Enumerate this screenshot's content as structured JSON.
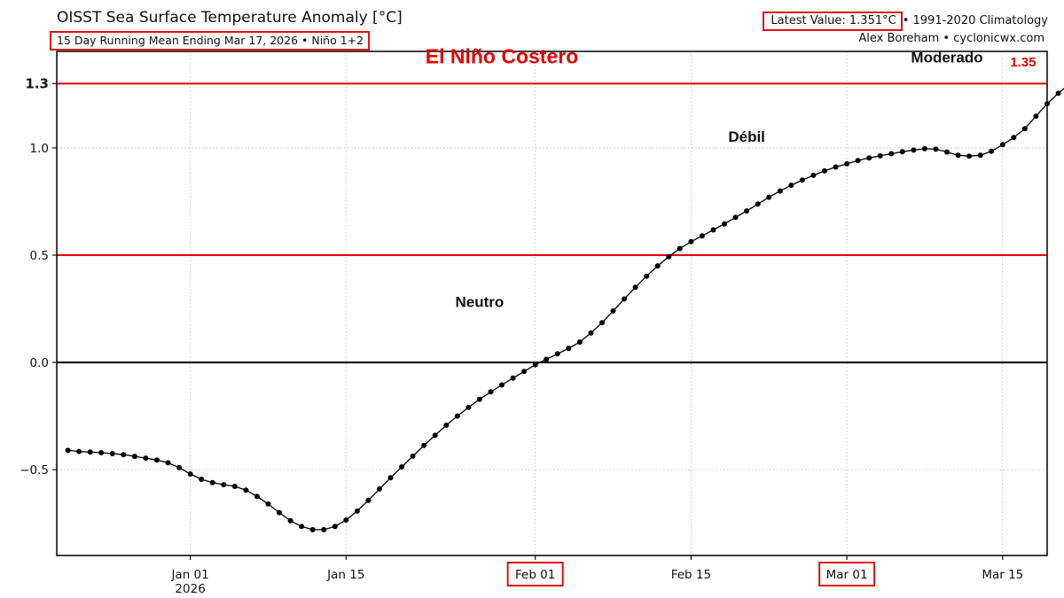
{
  "header": {
    "title": "OISST Sea Surface Temperature Anomaly [°C]",
    "subtitle": "15 Day Running Mean Ending Mar 17, 2026 • Niño 1+2",
    "latest_value": "Latest Value: 1.351°C",
    "climatology": "• 1991-2020 Climatology",
    "credit": "Alex Boreham • cyclonicwx.com"
  },
  "colors": {
    "threshold": "#e60000",
    "series": "#000000",
    "grid": "#bbbbbb",
    "highlight_box": "#e01010"
  },
  "chart_data": {
    "type": "line",
    "title": "OISST Sea Surface Temperature Anomaly [°C]",
    "xlabel": "",
    "ylabel": "",
    "x_start": "2025-12-21",
    "x_end": "2026-03-17",
    "xlim": [
      "2025-12-20",
      "2026-03-19"
    ],
    "ylim": [
      -0.9,
      1.45
    ],
    "grid": true,
    "yticks": [
      {
        "value": -0.5,
        "label": "−0.5",
        "bold": false
      },
      {
        "value": 0.0,
        "label": "0.0",
        "bold": false
      },
      {
        "value": 0.5,
        "label": "0.5",
        "bold": false
      },
      {
        "value": 1.0,
        "label": "1.0",
        "bold": false
      },
      {
        "value": 1.3,
        "label": "1.3",
        "bold": true
      }
    ],
    "xticks": [
      {
        "date": "2026-01-01",
        "label": "Jan 01",
        "label2": "2026",
        "boxed": false
      },
      {
        "date": "2026-01-15",
        "label": "Jan 15",
        "label2": "",
        "boxed": false
      },
      {
        "date": "2026-02-01",
        "label": "Feb 01",
        "label2": "",
        "boxed": true
      },
      {
        "date": "2026-02-15",
        "label": "Feb 15",
        "label2": "",
        "boxed": false
      },
      {
        "date": "2026-03-01",
        "label": "Mar 01",
        "label2": "",
        "boxed": true
      },
      {
        "date": "2026-03-15",
        "label": "Mar 15",
        "label2": "",
        "boxed": false
      }
    ],
    "hlines": [
      {
        "value": 0.0,
        "color": "#000000",
        "width": 2
      },
      {
        "value": 0.5,
        "color": "#e60000",
        "width": 2
      },
      {
        "value": 1.3,
        "color": "#e60000",
        "width": 2
      }
    ],
    "annotations": [
      {
        "text": "El Niño Costero",
        "date": "2026-01-29",
        "value": 1.385,
        "color": "#e60000",
        "size": 23
      },
      {
        "text": "Moderado",
        "date": "2026-03-10",
        "value": 1.39,
        "color": "#111111",
        "size": 17
      },
      {
        "text": "Débil",
        "date": "2026-02-20",
        "value": 1.02,
        "color": "#111111",
        "size": 17
      },
      {
        "text": "Neutro",
        "date": "2026-01-27",
        "value": 0.25,
        "color": "#111111",
        "size": 17
      }
    ],
    "latest_label": {
      "text": "1.35",
      "date": "2026-03-17",
      "value": 1.351,
      "color": "#e60000"
    },
    "series": [
      {
        "values": [
          -0.41,
          -0.415,
          -0.418,
          -0.421,
          -0.425,
          -0.43,
          -0.438,
          -0.446,
          -0.455,
          -0.468,
          -0.49,
          -0.52,
          -0.545,
          -0.56,
          -0.57,
          -0.578,
          -0.595,
          -0.625,
          -0.66,
          -0.7,
          -0.738,
          -0.765,
          -0.78,
          -0.78,
          -0.765,
          -0.735,
          -0.693,
          -0.643,
          -0.59,
          -0.538,
          -0.487,
          -0.437,
          -0.387,
          -0.34,
          -0.293,
          -0.25,
          -0.21,
          -0.172,
          -0.137,
          -0.105,
          -0.073,
          -0.042,
          -0.011,
          0.015,
          0.04,
          0.065,
          0.095,
          0.137,
          0.185,
          0.24,
          0.296,
          0.35,
          0.402,
          0.45,
          0.493,
          0.531,
          0.563,
          0.59,
          0.618,
          0.646,
          0.676,
          0.706,
          0.738,
          0.77,
          0.799,
          0.826,
          0.85,
          0.872,
          0.893,
          0.911,
          0.926,
          0.941,
          0.953,
          0.963,
          0.973,
          0.982,
          0.99,
          0.996,
          0.994,
          0.981,
          0.966,
          0.962,
          0.966,
          0.984,
          1.015,
          1.048,
          1.09,
          1.148,
          1.206,
          1.255,
          1.297,
          1.322,
          1.351
        ]
      }
    ]
  }
}
